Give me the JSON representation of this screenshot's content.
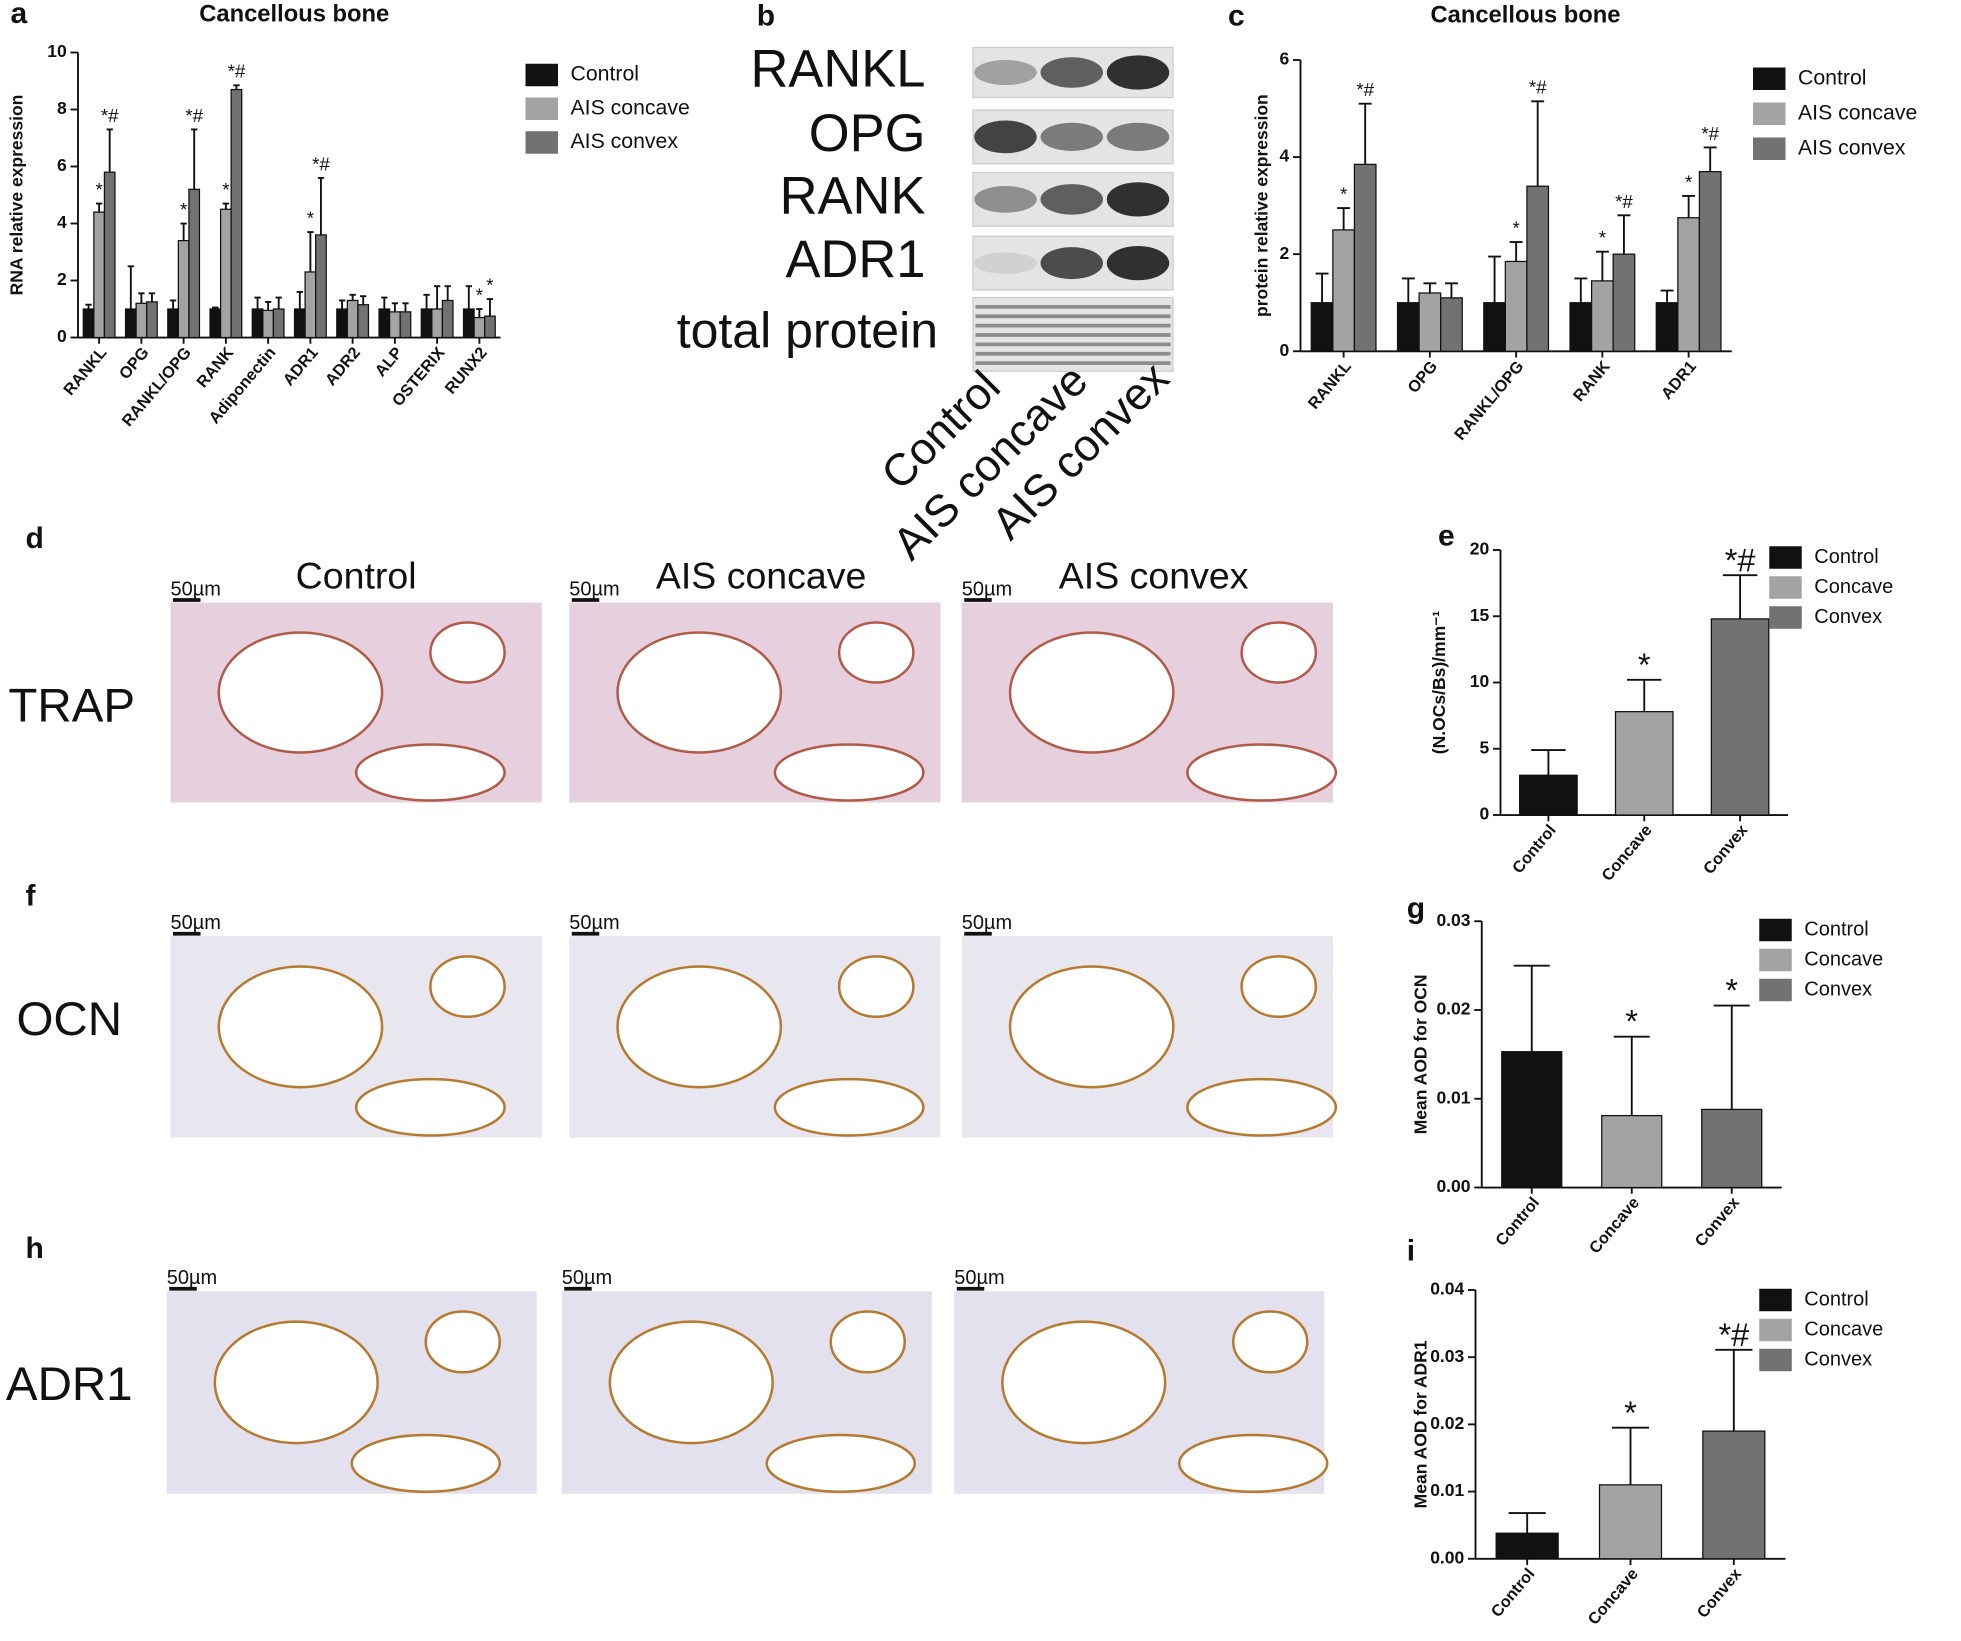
{
  "chart_data": [
    {
      "type": "bar",
      "panel": "a",
      "title": "Cancellous bone",
      "ylabel": "RNA relative expression",
      "categories": [
        "RANKL",
        "OPG",
        "RANKL/OPG",
        "RANK",
        "Adiponectin",
        "ADR1",
        "ADR2",
        "ALP",
        "OSTERIX",
        "RUNX2"
      ],
      "series": [
        {
          "name": "Control",
          "color": "#111111",
          "values": [
            1.0,
            1.0,
            1.0,
            1.0,
            1.0,
            1.0,
            1.0,
            1.0,
            1.0,
            1.0
          ],
          "errors": [
            0.15,
            1.5,
            0.3,
            0.05,
            0.4,
            0.6,
            0.3,
            0.4,
            0.5,
            0.8
          ],
          "annotations": [
            null,
            null,
            null,
            null,
            null,
            null,
            null,
            null,
            null,
            null
          ]
        },
        {
          "name": "AIS concave",
          "color": "#a3a3a3",
          "values": [
            4.4,
            1.2,
            3.4,
            4.5,
            0.95,
            2.3,
            1.3,
            0.9,
            1.0,
            0.7
          ],
          "errors": [
            0.3,
            0.35,
            0.6,
            0.2,
            0.3,
            1.4,
            0.2,
            0.3,
            0.8,
            0.3
          ],
          "annotations": [
            "*",
            null,
            "*",
            "*",
            null,
            "*",
            null,
            null,
            null,
            "*"
          ]
        },
        {
          "name": "AIS convex",
          "color": "#727272",
          "values": [
            5.8,
            1.25,
            5.2,
            8.7,
            1.0,
            3.6,
            1.15,
            0.9,
            1.3,
            0.75
          ],
          "errors": [
            1.5,
            0.3,
            2.1,
            0.15,
            0.4,
            2.0,
            0.3,
            0.3,
            0.5,
            0.6
          ],
          "annotations": [
            "*#",
            null,
            "*#",
            "*#",
            null,
            "*#",
            null,
            null,
            null,
            "*"
          ]
        }
      ],
      "ylim": [
        0,
        10
      ],
      "yticks": [
        0,
        2,
        4,
        6,
        8,
        10
      ]
    },
    {
      "type": "bar",
      "panel": "c",
      "title": "Cancellous bone",
      "ylabel": "protein relative expression",
      "categories": [
        "RANKL",
        "OPG",
        "RANKL/OPG",
        "RANK",
        "ADR1"
      ],
      "series": [
        {
          "name": "Control",
          "color": "#111111",
          "values": [
            1.0,
            1.0,
            1.0,
            1.0,
            1.0
          ],
          "errors": [
            0.6,
            0.5,
            0.95,
            0.5,
            0.25
          ],
          "annotations": [
            null,
            null,
            null,
            null,
            null
          ]
        },
        {
          "name": "AIS concave",
          "color": "#a3a3a3",
          "values": [
            2.5,
            1.2,
            1.85,
            1.45,
            2.75
          ],
          "errors": [
            0.45,
            0.2,
            0.4,
            0.6,
            0.45
          ],
          "annotations": [
            "*",
            null,
            "*",
            "*",
            "*"
          ]
        },
        {
          "name": "AIS convex",
          "color": "#727272",
          "values": [
            3.85,
            1.1,
            3.4,
            2.0,
            3.7
          ],
          "errors": [
            1.25,
            0.3,
            1.75,
            0.8,
            0.5
          ],
          "annotations": [
            "*#",
            null,
            "*#",
            "*#",
            "*#"
          ]
        }
      ],
      "ylim": [
        0,
        6
      ],
      "yticks": [
        0,
        2,
        4,
        6
      ]
    },
    {
      "type": "bar",
      "panel": "e",
      "ylabel": "(N.OCs/Bs)/mm⁻¹",
      "categories": [
        "Control",
        "Concave",
        "Convex"
      ],
      "colors": [
        "#111111",
        "#a3a3a3",
        "#727272"
      ],
      "values": [
        3.0,
        7.8,
        14.8
      ],
      "errors": [
        1.9,
        2.4,
        3.3
      ],
      "annotations": [
        null,
        "*",
        "*#"
      ],
      "ylim": [
        0,
        20
      ],
      "yticks": [
        0,
        5,
        10,
        15,
        20
      ]
    },
    {
      "type": "bar",
      "panel": "g",
      "ylabel": "Mean AOD for OCN",
      "categories": [
        "Control",
        "Concave",
        "Convex"
      ],
      "colors": [
        "#111111",
        "#a3a3a3",
        "#727272"
      ],
      "values": [
        0.0153,
        0.0081,
        0.0088
      ],
      "errors": [
        0.0097,
        0.0089,
        0.0117
      ],
      "annotations": [
        null,
        "*",
        "*"
      ],
      "ylim": [
        0,
        0.03
      ],
      "yticks": [
        {
          "value": 0,
          "label": "0.00"
        },
        0.01,
        0.02,
        0.03
      ]
    },
    {
      "type": "bar",
      "panel": "i",
      "ylabel": "Mean AOD for ADR1",
      "categories": [
        "Control",
        "Concave",
        "Convex"
      ],
      "colors": [
        "#111111",
        "#a3a3a3",
        "#727272"
      ],
      "values": [
        0.0038,
        0.011,
        0.019
      ],
      "errors": [
        0.003,
        0.0085,
        0.0121
      ],
      "annotations": [
        null,
        "*",
        "*#"
      ],
      "ylim": [
        0,
        0.04
      ],
      "yticks": [
        {
          "value": 0,
          "label": "0.00"
        },
        0.01,
        0.02,
        0.03,
        0.04
      ]
    }
  ],
  "blot": {
    "panel": "b",
    "rows": [
      "RANKL",
      "OPG",
      "RANK",
      "ADR1",
      "total protein"
    ],
    "lanes": [
      "Control",
      "AIS concave",
      "AIS convex"
    ]
  },
  "histology": {
    "columns": [
      "Control",
      "AIS concave",
      "AIS convex"
    ],
    "scale_bar": "50µm",
    "rows": [
      {
        "panel": "d",
        "stain": "TRAP"
      },
      {
        "panel": "f",
        "stain": "OCN"
      },
      {
        "panel": "h",
        "stain": "ADR1"
      }
    ]
  }
}
